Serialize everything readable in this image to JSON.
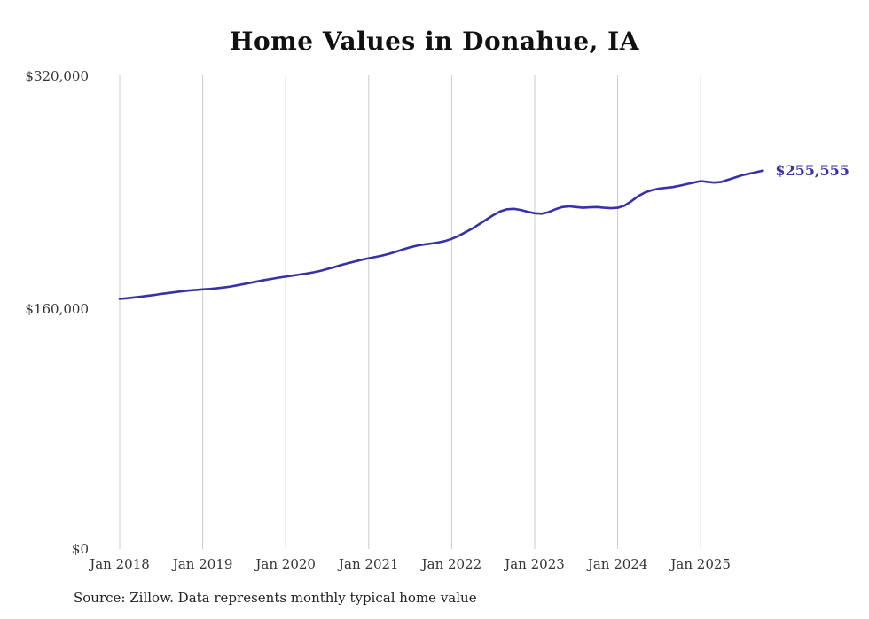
{
  "title": "Home Values in Donahue, IA",
  "source_note": "Source: Zillow. Data represents monthly typical home value",
  "end_label": "$255,555",
  "colors": {
    "line": "#3732a8",
    "grid": "#cccccc",
    "axis_text": "#333333"
  },
  "chart_data": {
    "type": "line",
    "title": "Home Values in Donahue, IA",
    "series_name": "Monthly typical home value",
    "frequency": "monthly",
    "start": "Jan 2018",
    "end": "Oct 2025",
    "ylim": [
      0,
      320000
    ],
    "grid": "vertical-only",
    "x_tick_labels": [
      "Jan 2018",
      "Jan 2019",
      "Jan 2020",
      "Jan 2021",
      "Jan 2022",
      "Jan 2023",
      "Jan 2024",
      "Jan 2025"
    ],
    "y_tick_labels": [
      "$320,000",
      "$160,000",
      "$0"
    ],
    "y_tick_values": [
      320000,
      160000,
      0
    ],
    "final_value": 255555,
    "values": [
      169000,
      169400,
      169900,
      170400,
      171000,
      171600,
      172300,
      172900,
      173500,
      174100,
      174600,
      175000,
      175400,
      175700,
      176100,
      176600,
      177300,
      178100,
      179000,
      179900,
      180800,
      181700,
      182500,
      183300,
      184000,
      184700,
      185400,
      186100,
      186900,
      187900,
      189100,
      190400,
      191800,
      193100,
      194300,
      195400,
      196400,
      197300,
      198300,
      199500,
      200900,
      202400,
      203800,
      204900,
      205700,
      206300,
      207000,
      208000,
      209500,
      211500,
      214000,
      216500,
      219500,
      222500,
      225500,
      228000,
      229500,
      229800,
      229000,
      227800,
      226800,
      226500,
      227500,
      229500,
      231000,
      231500,
      231000,
      230500,
      230800,
      231000,
      230500,
      230200,
      230500,
      232000,
      235000,
      238500,
      241000,
      242500,
      243500,
      244000,
      244500,
      245500,
      246500,
      247500,
      248500,
      248000,
      247500,
      248000,
      249500,
      251000,
      252500,
      253500,
      254500,
      255555
    ]
  }
}
